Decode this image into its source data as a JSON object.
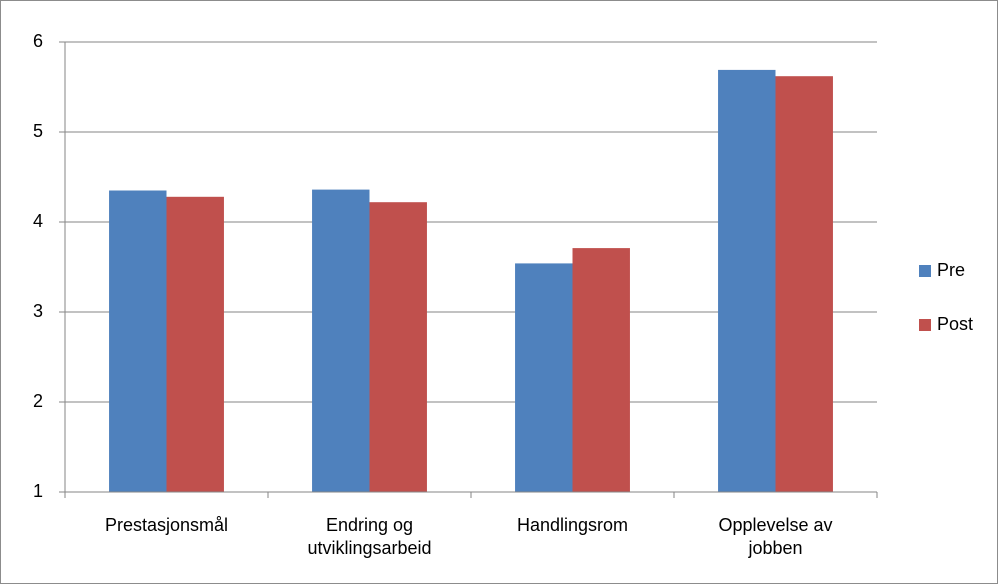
{
  "chart_data": {
    "type": "bar",
    "categories": [
      "Prestasjonsmål",
      "Endring og utviklingsarbeid",
      "Handlingsrom",
      "Opplevelse av jobben"
    ],
    "series": [
      {
        "name": "Pre",
        "color": "#4f81bd",
        "values": [
          4.35,
          4.36,
          3.54,
          5.69
        ]
      },
      {
        "name": "Post",
        "color": "#c0504d",
        "values": [
          4.28,
          4.22,
          3.71,
          5.62
        ]
      }
    ],
    "ylim": [
      1,
      6
    ],
    "yticks": [
      1,
      2,
      3,
      4,
      5,
      6
    ],
    "grid": true,
    "legend": "right"
  }
}
